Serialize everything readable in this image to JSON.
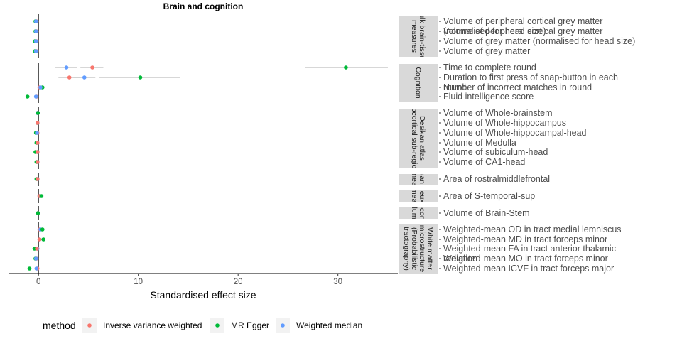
{
  "chart_data": {
    "type": "scatter",
    "title": "Brain and cognition",
    "xlabel": "Standardised effect size",
    "ylabel": "",
    "xlim": [
      -3,
      36
    ],
    "xticks": [
      0,
      10,
      20,
      30
    ],
    "colors": {
      "Inverse variance weighted": "#F8766D",
      "MR Egger": "#00BA38",
      "Weighted median": "#619CFF",
      "error_bar": "#bfbfbf",
      "strip_fill": "#d9d9d9",
      "zero_line": "#000000"
    },
    "legend": {
      "title": "method",
      "position": "bottom",
      "entries": [
        "Inverse variance weighted",
        "MR Egger",
        "Weighted median"
      ]
    },
    "panels": [
      {
        "strip": [
          "Bulk brain-tissue",
          "measures"
        ],
        "rows": [
          {
            "label": [
              "Volume of peripheral cortical grey matter",
              "(normalised for head size)"
            ],
            "points": [
              {
                "method": "Inverse variance weighted",
                "est": -0.2,
                "lo": -0.4,
                "hi": 0.0
              },
              {
                "method": "MR Egger",
                "est": -0.3,
                "lo": -0.5,
                "hi": -0.1
              },
              {
                "method": "Weighted median",
                "est": -0.25,
                "lo": -0.45,
                "hi": -0.05
              }
            ]
          },
          {
            "label": [
              "Volume of peripheral cortical grey matter"
            ],
            "points": [
              {
                "method": "Inverse variance weighted",
                "est": -0.2,
                "lo": -0.4,
                "hi": 0.0
              },
              {
                "method": "MR Egger",
                "est": -0.3,
                "lo": -0.5,
                "hi": -0.1
              },
              {
                "method": "Weighted median",
                "est": -0.25,
                "lo": -0.45,
                "hi": -0.05
              }
            ]
          },
          {
            "label": [
              "Volume of grey matter (normalised for head size)"
            ],
            "points": [
              {
                "method": "Inverse variance weighted",
                "est": -0.2,
                "lo": -0.4,
                "hi": 0.0
              },
              {
                "method": "MR Egger",
                "est": -0.35,
                "lo": -0.55,
                "hi": -0.15
              },
              {
                "method": "Weighted median",
                "est": -0.25,
                "lo": -0.45,
                "hi": -0.05
              }
            ]
          },
          {
            "label": [
              "Volume of grey matter"
            ],
            "points": [
              {
                "method": "Inverse variance weighted",
                "est": -0.2,
                "lo": -0.4,
                "hi": 0.0
              },
              {
                "method": "MR Egger",
                "est": -0.35,
                "lo": -0.55,
                "hi": -0.15
              },
              {
                "method": "Weighted median",
                "est": -0.25,
                "lo": -0.45,
                "hi": -0.05
              }
            ]
          }
        ]
      },
      {
        "strip": [
          "Cognition"
        ],
        "rows": [
          {
            "label": [
              "Time to complete round"
            ],
            "points": [
              {
                "method": "Weighted median",
                "est": 2.8,
                "lo": 1.7,
                "hi": 3.9
              },
              {
                "method": "Inverse variance weighted",
                "est": 5.4,
                "lo": 4.2,
                "hi": 6.5
              },
              {
                "method": "MR Egger",
                "est": 30.8,
                "lo": 26.7,
                "hi": 35.0
              }
            ]
          },
          {
            "label": [
              "Duration to first press of snap-button in each",
              "round"
            ],
            "points": [
              {
                "method": "Inverse variance weighted",
                "est": 3.1,
                "lo": 2.0,
                "hi": 4.2
              },
              {
                "method": "Weighted median",
                "est": 4.6,
                "lo": 3.5,
                "hi": 5.7
              },
              {
                "method": "MR Egger",
                "est": 10.2,
                "lo": 6.1,
                "hi": 14.2
              }
            ]
          },
          {
            "label": [
              "Number of incorrect matches in round"
            ],
            "points": [
              {
                "method": "Inverse variance weighted",
                "est": 0.1,
                "lo": -0.05,
                "hi": 0.25
              },
              {
                "method": "MR Egger",
                "est": 0.4,
                "lo": 0.2,
                "hi": 0.6
              },
              {
                "method": "Weighted median",
                "est": 0.2,
                "lo": 0.05,
                "hi": 0.35
              }
            ]
          },
          {
            "label": [
              "Fluid intelligence score"
            ],
            "points": [
              {
                "method": "Inverse variance weighted",
                "est": -0.2,
                "lo": -0.35,
                "hi": -0.05
              },
              {
                "method": "MR Egger",
                "est": -1.1,
                "lo": -1.3,
                "hi": -0.9
              },
              {
                "method": "Weighted median",
                "est": -0.25,
                "lo": -0.4,
                "hi": -0.1
              }
            ]
          }
        ]
      },
      {
        "strip": [
          "Desikan atlas",
          "subcortical sub-regions"
        ],
        "rows": [
          {
            "label": [
              "Volume of Whole-brainstem"
            ],
            "points": [
              {
                "method": "Inverse variance weighted",
                "est": -0.1,
                "lo": -0.25,
                "hi": 0.05
              },
              {
                "method": "Weighted median",
                "est": -0.1,
                "lo": -0.25,
                "hi": 0.05
              },
              {
                "method": "MR Egger",
                "est": -0.05,
                "lo": -0.2,
                "hi": 0.1
              }
            ]
          },
          {
            "label": [
              "Volume of Whole-hippocampus"
            ],
            "points": [
              {
                "method": "MR Egger",
                "est": -0.1,
                "lo": -0.25,
                "hi": 0.05
              },
              {
                "method": "Weighted median",
                "est": -0.1,
                "lo": -0.25,
                "hi": 0.05
              },
              {
                "method": "Inverse variance weighted",
                "est": -0.1,
                "lo": -0.25,
                "hi": 0.05
              }
            ]
          },
          {
            "label": [
              "Volume of Whole-hippocampal-head"
            ],
            "points": [
              {
                "method": "Inverse variance weighted",
                "est": -0.1,
                "lo": -0.25,
                "hi": 0.05
              },
              {
                "method": "MR Egger",
                "est": -0.25,
                "lo": -0.4,
                "hi": -0.1
              },
              {
                "method": "Weighted median",
                "est": -0.15,
                "lo": -0.3,
                "hi": 0.0
              }
            ]
          },
          {
            "label": [
              "Volume of Medulla"
            ],
            "points": [
              {
                "method": "Weighted median",
                "est": -0.1,
                "lo": -0.25,
                "hi": 0.05
              },
              {
                "method": "MR Egger",
                "est": -0.2,
                "lo": -0.35,
                "hi": -0.05
              },
              {
                "method": "Inverse variance weighted",
                "est": -0.1,
                "lo": -0.25,
                "hi": 0.05
              }
            ]
          },
          {
            "label": [
              "Volume of subiculum-head"
            ],
            "points": [
              {
                "method": "Weighted median",
                "est": -0.1,
                "lo": -0.25,
                "hi": 0.05
              },
              {
                "method": "MR Egger",
                "est": -0.3,
                "lo": -0.45,
                "hi": -0.15
              },
              {
                "method": "Inverse variance weighted",
                "est": -0.1,
                "lo": -0.25,
                "hi": 0.05
              }
            ]
          },
          {
            "label": [
              "Volume of CA1-head"
            ],
            "points": [
              {
                "method": "Weighted median",
                "est": -0.1,
                "lo": -0.25,
                "hi": 0.05
              },
              {
                "method": "MR Egger",
                "est": -0.2,
                "lo": -0.35,
                "hi": -0.05
              },
              {
                "method": "Inverse variance weighted",
                "est": -0.1,
                "lo": -0.25,
                "hi": 0.05
              }
            ]
          }
        ]
      },
      {
        "strip": [
          "Desikan atlas",
          "area measures"
        ],
        "rows": [
          {
            "label": [
              "Area of rostralmiddlefrontal"
            ],
            "points": [
              {
                "method": "Weighted median",
                "est": -0.1,
                "lo": -0.25,
                "hi": 0.05
              },
              {
                "method": "MR Egger",
                "est": -0.2,
                "lo": -0.35,
                "hi": -0.05
              },
              {
                "method": "Inverse variance weighted",
                "est": -0.1,
                "lo": -0.25,
                "hi": 0.05
              }
            ]
          }
        ]
      },
      {
        "strip": [
          "Destrieux atlas",
          "area measures"
        ],
        "rows": [
          {
            "label": [
              "Area of S-temporal-sup"
            ],
            "points": [
              {
                "method": "Weighted median",
                "est": 0.1,
                "lo": -0.05,
                "hi": 0.25
              },
              {
                "method": "Inverse variance weighted",
                "est": 0.1,
                "lo": -0.05,
                "hi": 0.25
              },
              {
                "method": "MR Egger",
                "est": 0.3,
                "lo": 0.1,
                "hi": 0.5
              }
            ]
          }
        ]
      },
      {
        "strip": [
          "Subcortical",
          "volumes"
        ],
        "rows": [
          {
            "label": [
              "Volume of Brain-Stem"
            ],
            "points": [
              {
                "method": "Weighted median",
                "est": -0.05,
                "lo": -0.2,
                "hi": 0.1
              },
              {
                "method": "Inverse variance weighted",
                "est": -0.05,
                "lo": -0.2,
                "hi": 0.1
              },
              {
                "method": "MR Egger",
                "est": -0.05,
                "lo": -0.2,
                "hi": 0.1
              }
            ]
          }
        ]
      },
      {
        "strip": [
          "White matter",
          "microstructure",
          "(Probabilistic",
          "tractography)"
        ],
        "rows": [
          {
            "label": [
              "Weighted-mean OD in tract medial lemniscus"
            ],
            "points": [
              {
                "method": "Inverse variance weighted",
                "est": 0.1,
                "lo": -0.05,
                "hi": 0.25
              },
              {
                "method": "Weighted median",
                "est": 0.2,
                "lo": 0.05,
                "hi": 0.35
              },
              {
                "method": "MR Egger",
                "est": 0.4,
                "lo": 0.2,
                "hi": 0.6
              }
            ]
          },
          {
            "label": [
              "Weighted-mean MD in tract forceps minor"
            ],
            "points": [
              {
                "method": "Weighted median",
                "est": 0.1,
                "lo": -0.05,
                "hi": 0.25
              },
              {
                "method": "Inverse variance weighted",
                "est": 0.1,
                "lo": -0.05,
                "hi": 0.25
              },
              {
                "method": "MR Egger",
                "est": 0.5,
                "lo": 0.3,
                "hi": 0.7
              }
            ]
          },
          {
            "label": [
              "Weighted-mean FA in tract anterior thalamic",
              "radiation"
            ],
            "points": [
              {
                "method": "MR Egger",
                "est": -0.4,
                "lo": -0.6,
                "hi": -0.2
              },
              {
                "method": "Weighted median",
                "est": -0.1,
                "lo": -0.25,
                "hi": 0.05
              },
              {
                "method": "Inverse variance weighted",
                "est": -0.15,
                "lo": -0.3,
                "hi": 0.0
              }
            ]
          },
          {
            "label": [
              "Weighted-mean MO in tract forceps minor"
            ],
            "points": [
              {
                "method": "MR Egger",
                "est": -0.3,
                "lo": -0.5,
                "hi": -0.1
              },
              {
                "method": "Inverse variance weighted",
                "est": -0.2,
                "lo": -0.35,
                "hi": -0.05
              },
              {
                "method": "Weighted median",
                "est": -0.25,
                "lo": -0.4,
                "hi": -0.1
              }
            ]
          },
          {
            "label": [
              "Weighted-mean ICVF in tract forceps major"
            ],
            "points": [
              {
                "method": "MR Egger",
                "est": -0.9,
                "lo": -1.1,
                "hi": -0.7
              },
              {
                "method": "Inverse variance weighted",
                "est": -0.1,
                "lo": -0.25,
                "hi": 0.05
              },
              {
                "method": "Weighted median",
                "est": -0.2,
                "lo": -0.35,
                "hi": -0.05
              }
            ]
          }
        ]
      }
    ]
  }
}
